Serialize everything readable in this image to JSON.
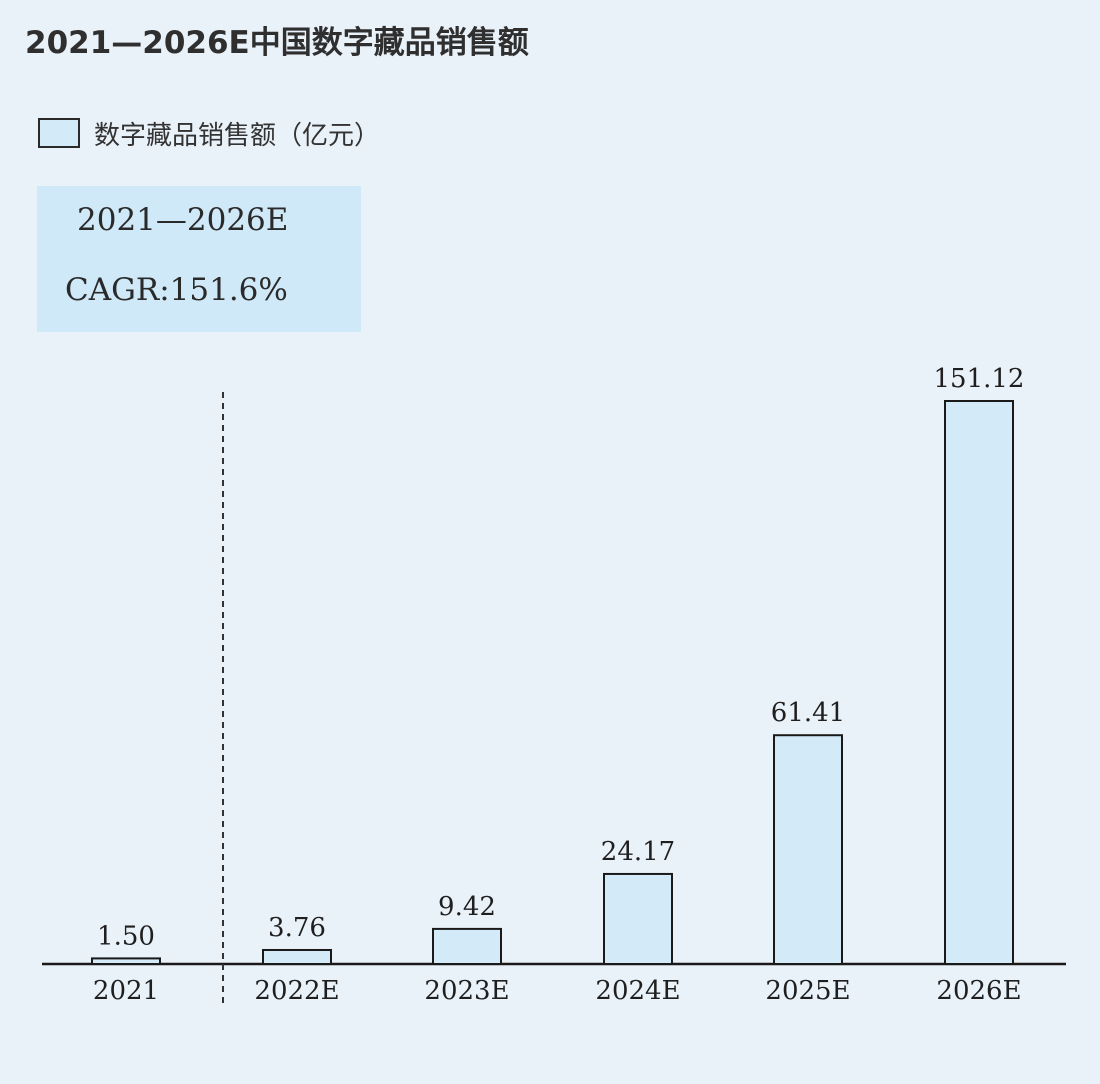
{
  "title": "2021—2026E中国数字藏品销售额",
  "legend": {
    "label": "数字藏品销售额（亿元）"
  },
  "cagr_box": {
    "period": "2021—2026E",
    "value": "CAGR:151.6%"
  },
  "colors": {
    "background": "#e9f1f9",
    "bar_fill": "#d3eaf8",
    "bar_stroke": "#1a1a1a",
    "cagr_box": "#d0e9f8"
  },
  "chart_data": {
    "type": "bar",
    "title": "2021—2026E中国数字藏品销售额",
    "categories": [
      "2021",
      "2022E",
      "2023E",
      "2024E",
      "2025E",
      "2026E"
    ],
    "series": [
      {
        "name": "数字藏品销售额（亿元）",
        "values": [
          1.5,
          3.76,
          9.42,
          24.17,
          61.41,
          151.12
        ]
      }
    ],
    "value_labels": [
      "1.50",
      "3.76",
      "9.42",
      "24.17",
      "61.41",
      "151.12"
    ],
    "xlabel": "",
    "ylabel": "",
    "ylim": [
      0,
      151.12
    ],
    "grid": false,
    "legend_position": "top-left",
    "forecast_divider_after": "2021"
  }
}
